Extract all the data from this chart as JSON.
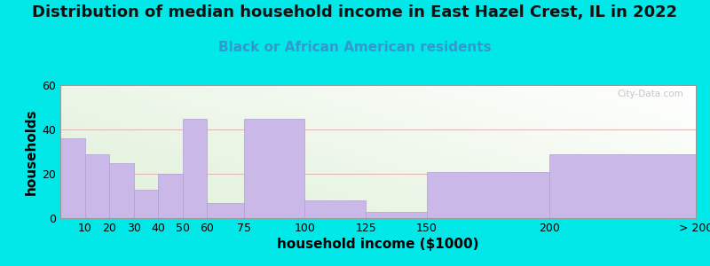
{
  "title": "Distribution of median household income in East Hazel Crest, IL in 2022",
  "subtitle": "Black or African American residents",
  "xlabel": "household income ($1000)",
  "ylabel": "households",
  "bar_lefts": [
    0,
    10,
    20,
    30,
    40,
    50,
    60,
    75,
    100,
    125,
    150,
    200
  ],
  "bar_widths": [
    10,
    10,
    10,
    10,
    10,
    10,
    15,
    25,
    25,
    25,
    50,
    60
  ],
  "bar_heights": [
    36,
    29,
    25,
    13,
    20,
    45,
    7,
    45,
    8,
    3,
    21,
    29
  ],
  "xtick_positions": [
    10,
    20,
    30,
    40,
    50,
    60,
    75,
    100,
    125,
    150,
    200,
    260
  ],
  "xtick_labels": [
    "10",
    "20",
    "30",
    "40",
    "50",
    "60",
    "75",
    "100",
    "125",
    "150",
    "200",
    "> 200"
  ],
  "bar_color": "#c9b8e8",
  "bar_edgecolor": "#b0a0d0",
  "background_color": "#00e8e8",
  "ylim": [
    0,
    60
  ],
  "xlim": [
    0,
    260
  ],
  "yticks": [
    0,
    20,
    40,
    60
  ],
  "title_fontsize": 13,
  "subtitle_fontsize": 11,
  "label_fontsize": 11,
  "tick_fontsize": 9,
  "watermark": "City-Data.com"
}
